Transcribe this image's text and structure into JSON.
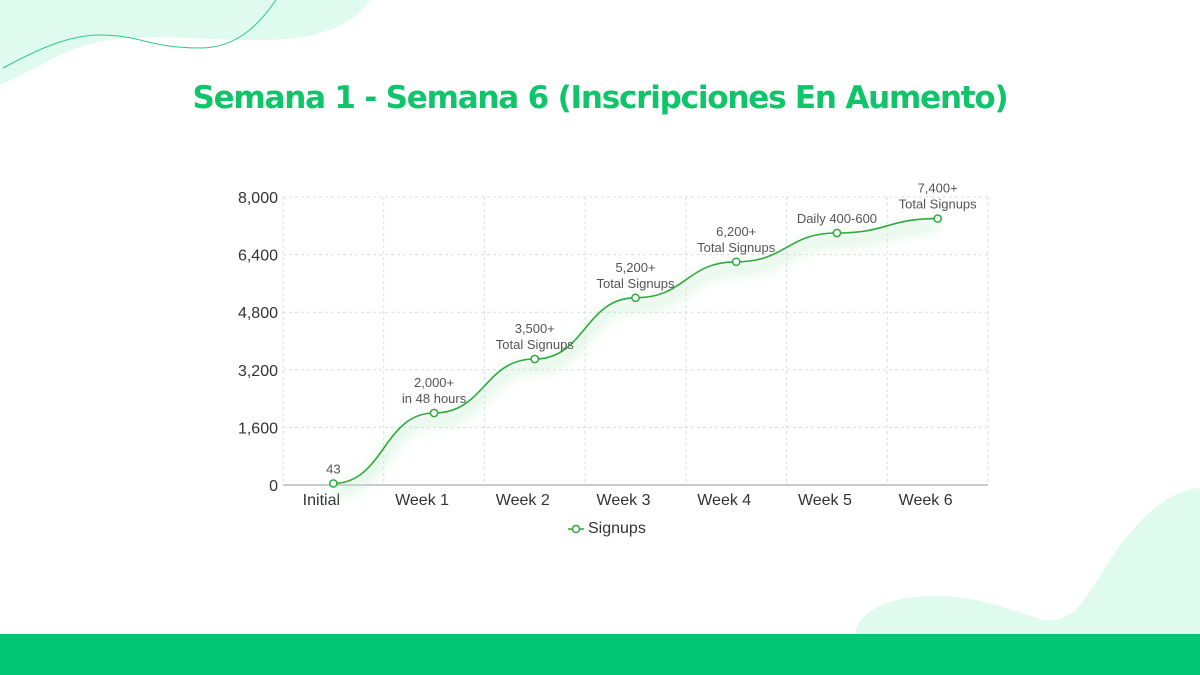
{
  "title": "Semana 1 - Semana 6 (Inscripciones En Aumento)",
  "colors": {
    "accent": "#10c46a",
    "line": "#2eaa3c",
    "footer": "#00c572",
    "decor": "#dffbf0"
  },
  "legend": {
    "label": "Signups"
  },
  "chart_data": {
    "type": "line",
    "title": "Semana 1 - Semana 6 (Inscripciones En Aumento)",
    "xlabel": "",
    "ylabel": "",
    "categories": [
      "Initial",
      "Week 1",
      "Week 2",
      "Week 3",
      "Week 4",
      "Week 5",
      "Week 6"
    ],
    "series": [
      {
        "name": "Signups",
        "values": [
          43,
          2000,
          3500,
          5200,
          6200,
          7000,
          7400
        ],
        "annotations": [
          [
            "43"
          ],
          [
            "2,000+",
            "in 48 hours"
          ],
          [
            "3,500+",
            "Total Signups"
          ],
          [
            "5,200+",
            "Total Signups"
          ],
          [
            "6,200+",
            "Total Signups"
          ],
          [
            "Daily 400-600"
          ],
          [
            "7,400+",
            "Total Signups"
          ]
        ]
      }
    ],
    "yticks": [
      0,
      1600,
      3200,
      4800,
      6400,
      8000
    ],
    "ytick_labels": [
      "0",
      "1,600",
      "3,200",
      "4,800",
      "6,400",
      "8,000"
    ],
    "ylim": [
      0,
      8000
    ],
    "grid": true,
    "legend_position": "bottom"
  }
}
